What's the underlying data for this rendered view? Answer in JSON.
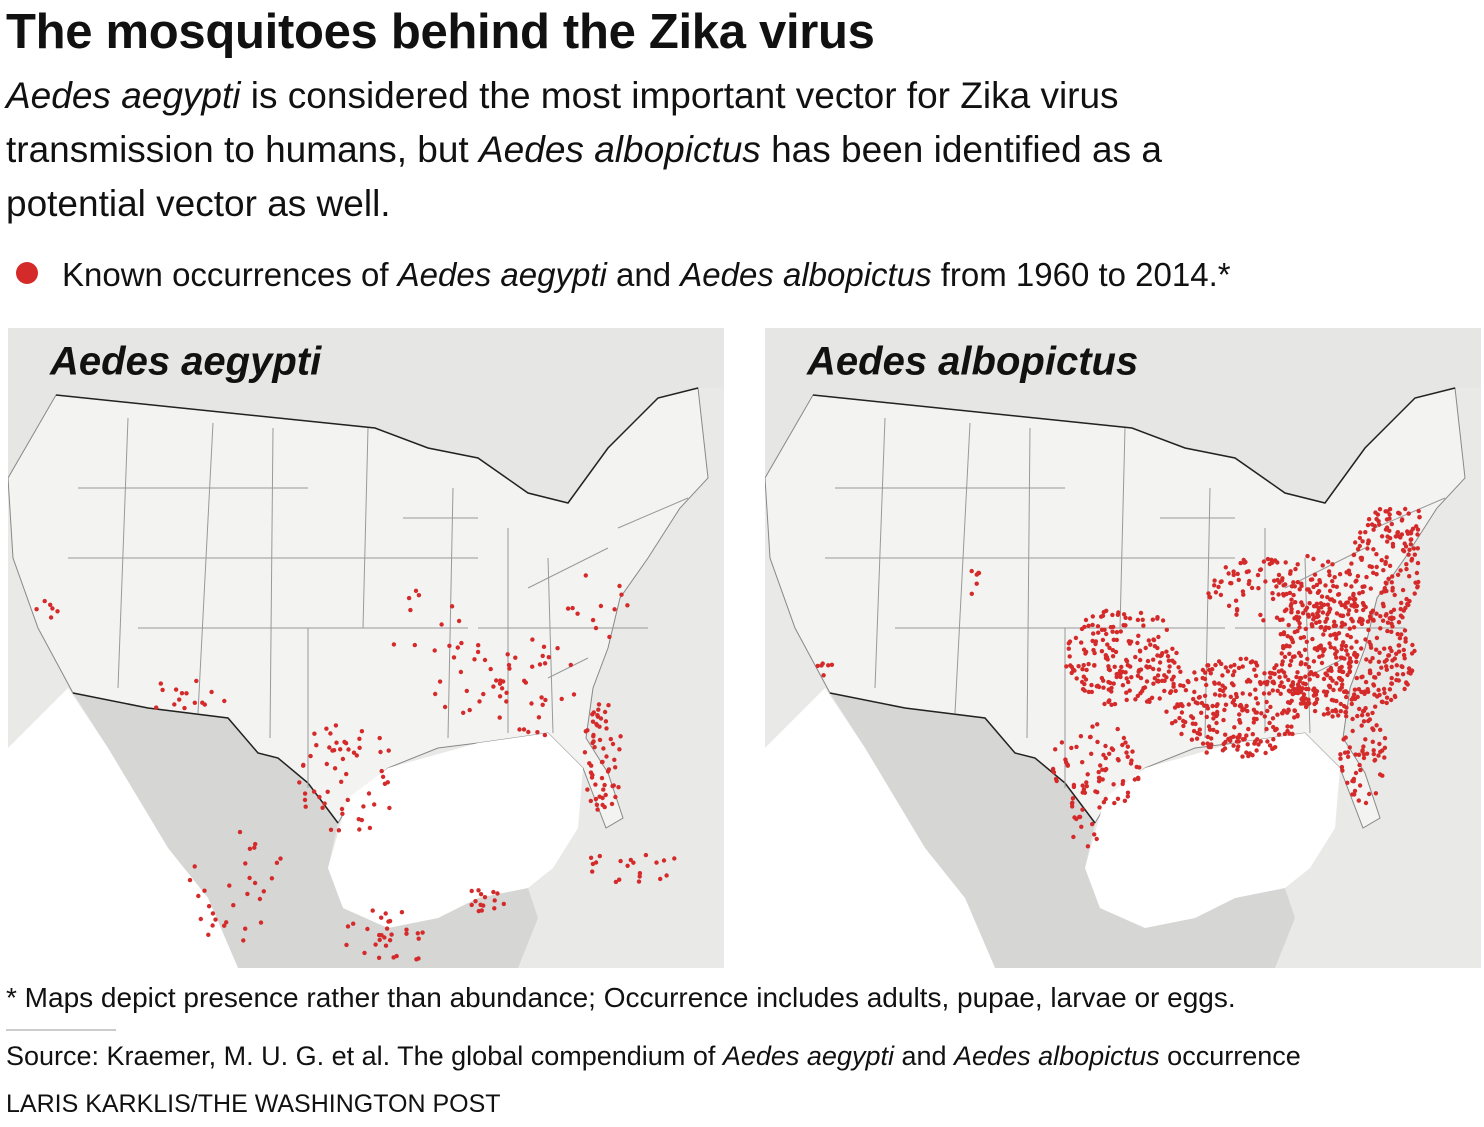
{
  "title": "The mosquitoes behind the Zika virus",
  "subtitle": [
    [
      {
        "text": "Aedes aegypti",
        "italic": true
      },
      {
        "text": " is considered the most important vector for Zika virus"
      }
    ],
    [
      {
        "text": "transmission to humans, but "
      },
      {
        "text": "Aedes albopictus",
        "italic": true
      },
      {
        "text": " has been identified as a"
      }
    ],
    [
      {
        "text": "potential vector as well."
      }
    ]
  ],
  "legend": {
    "color": "#d42a2a",
    "runs": [
      {
        "text": "Known occurrences of "
      },
      {
        "text": "Aedes aegypti",
        "italic": true
      },
      {
        "text": " and "
      },
      {
        "text": "Aedes albopictus",
        "italic": true
      },
      {
        "text": " from 1960 to 2014.*"
      }
    ]
  },
  "maps": [
    {
      "label": "Aedes aegypti"
    },
    {
      "label": "Aedes albopictus"
    }
  ],
  "footnote": "* Maps depict presence rather than abundance; Occurrence includes adults, pupae, larvae or eggs.",
  "source": [
    {
      "text": "Source: Kraemer, M. U. G. et al. The global compendium of "
    },
    {
      "text": "Aedes aegypti",
      "italic": true
    },
    {
      "text": " and "
    },
    {
      "text": "Aedes albopictus",
      "italic": true
    },
    {
      "text": " occurrence"
    }
  ],
  "credit": "LARIS KARKLIS/THE WASHINGTON POST"
}
